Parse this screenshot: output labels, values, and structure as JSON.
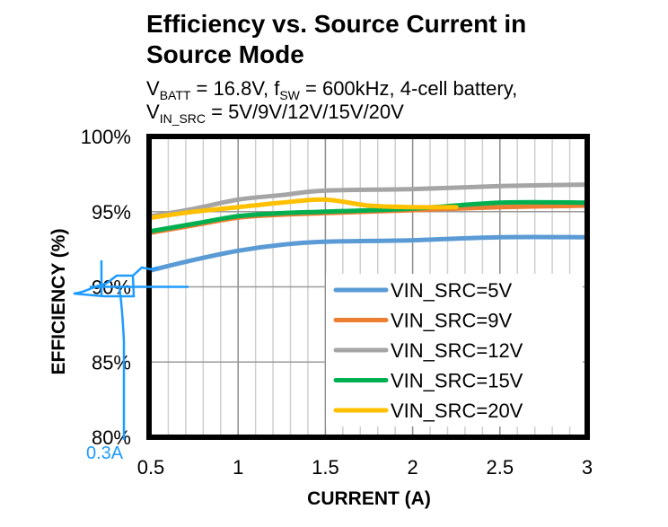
{
  "chart_data": {
    "type": "line",
    "title": "Efficiency vs. Source Current in Source Mode",
    "title_lines": [
      "Efficiency vs. Source Current in",
      "Source Mode"
    ],
    "subtitle_lines": [
      {
        "parts": [
          {
            "t": "V"
          },
          {
            "sub": "BATT"
          },
          {
            "t": " = 16.8V, f"
          },
          {
            "sub": "SW"
          },
          {
            "t": " = 600kHz, 4-cell battery,"
          }
        ]
      },
      {
        "parts": [
          {
            "t": "V"
          },
          {
            "sub": "IN_SRC"
          },
          {
            "t": " = 5V/9V/12V/15V/20V"
          }
        ]
      }
    ],
    "xlabel": "CURRENT (A)",
    "ylabel": "EFFICIENCY (%)",
    "xlim": [
      0.5,
      3
    ],
    "ylim": [
      80,
      100
    ],
    "x_ticks": [
      0.5,
      1,
      1.5,
      2,
      2.5,
      3
    ],
    "x_tick_labels": [
      "0.5",
      "1",
      "1.5",
      "2",
      "2.5",
      "3"
    ],
    "y_ticks": [
      80,
      85,
      90,
      95,
      100
    ],
    "y_tick_labels": [
      "80%",
      "85%",
      "90%",
      "95%",
      "100%"
    ],
    "grid": true,
    "legend_position": "bottom-right",
    "series": [
      {
        "name": "VIN_SRC=5V",
        "color": "#5b9bd5",
        "x": [
          0.5,
          0.75,
          1.0,
          1.25,
          1.5,
          2.0,
          2.5,
          3.0
        ],
        "values": [
          91.1,
          91.8,
          92.4,
          92.8,
          93.0,
          93.1,
          93.3,
          93.3
        ]
      },
      {
        "name": "VIN_SRC=9V",
        "color": "#ed7d31",
        "x": [
          0.5,
          0.75,
          1.0,
          1.25,
          1.5,
          2.0,
          2.5,
          3.0
        ],
        "values": [
          93.6,
          94.1,
          94.6,
          94.8,
          94.9,
          95.1,
          95.3,
          95.4
        ]
      },
      {
        "name": "VIN_SRC=12V",
        "color": "#a5a5a5",
        "x": [
          0.5,
          0.75,
          1.0,
          1.25,
          1.5,
          2.0,
          2.5,
          3.0
        ],
        "values": [
          94.7,
          95.2,
          95.8,
          96.1,
          96.4,
          96.5,
          96.7,
          96.8
        ]
      },
      {
        "name": "VIN_SRC=15V",
        "color": "#00b050",
        "x": [
          0.5,
          0.75,
          1.0,
          1.25,
          1.5,
          2.0,
          2.5,
          3.0
        ],
        "values": [
          93.7,
          94.2,
          94.7,
          94.9,
          95.0,
          95.2,
          95.6,
          95.6
        ]
      },
      {
        "name": "VIN_SRC=20V",
        "color": "#ffc000",
        "x": [
          0.5,
          0.75,
          1.0,
          1.25,
          1.5,
          1.75,
          2.0,
          2.25
        ],
        "values": [
          94.6,
          95.0,
          95.3,
          95.6,
          95.8,
          95.4,
          95.3,
          95.3
        ]
      }
    ],
    "annotation": {
      "text": "0.3A",
      "color": "#1e9bff",
      "x": 0.3,
      "y": 90
    }
  }
}
